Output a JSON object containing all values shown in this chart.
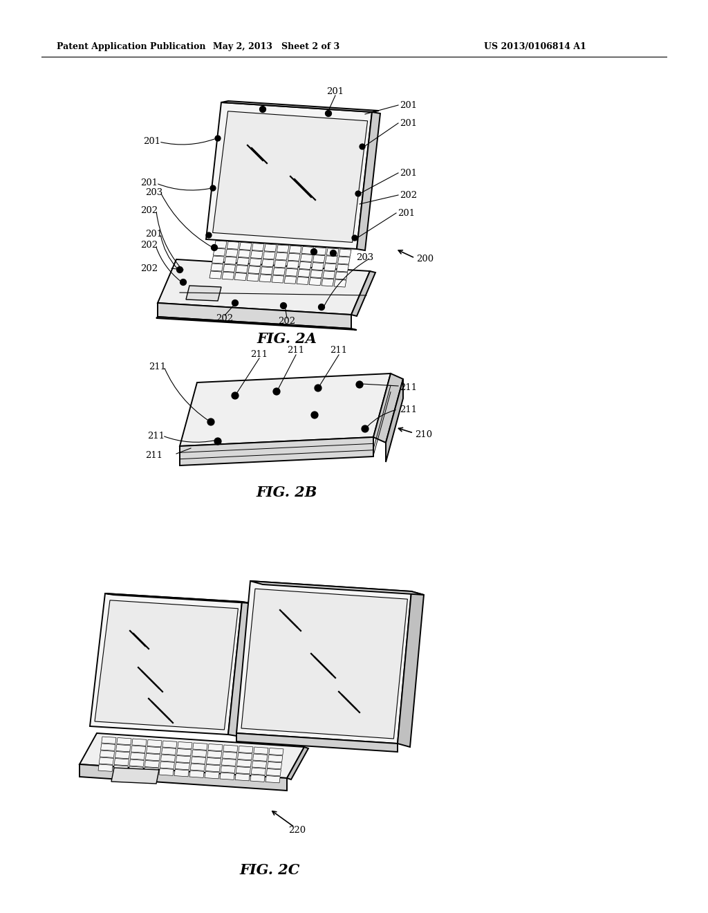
{
  "bg_color": "#ffffff",
  "line_color": "#000000",
  "header_left": "Patent Application Publication",
  "header_mid": "May 2, 2013   Sheet 2 of 3",
  "header_right": "US 2013/0106814 A1",
  "fig_labels": [
    "FIG. 2A",
    "FIG. 2B",
    "FIG. 2C"
  ]
}
